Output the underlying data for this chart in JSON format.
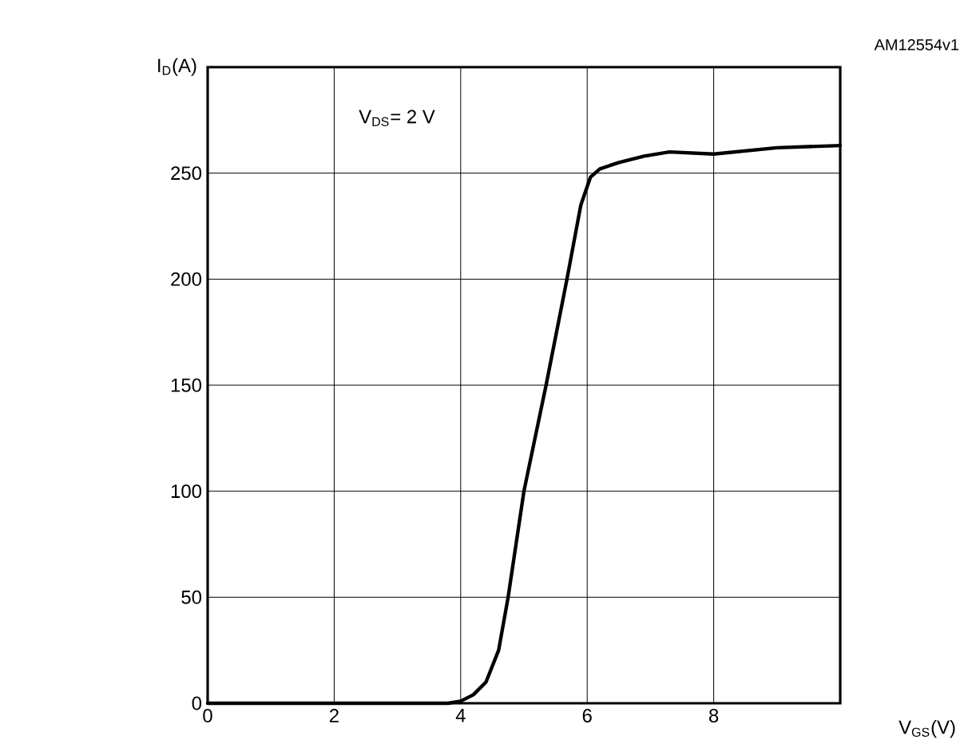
{
  "chart_data": {
    "type": "line",
    "xlabel": "V$_{GS}$(V)",
    "ylabel": "I$_{D}$(A)",
    "annotations": [
      "V$_{DS}$= 2 V",
      "AM12554v1"
    ],
    "x": [
      0,
      2,
      3,
      3.5,
      3.8,
      4,
      4.2,
      4.4,
      4.6,
      4.75,
      5.0,
      5.35,
      5.68,
      5.9,
      6.05,
      6.2,
      6.5,
      6.9,
      7.3,
      8,
      9,
      10
    ],
    "series": [
      {
        "color": "#000000",
        "values": [
          0,
          0,
          0,
          0,
          0,
          1,
          4,
          10,
          25,
          50,
          100,
          150,
          200,
          235,
          248,
          252,
          255,
          258,
          260,
          259,
          262,
          263
        ]
      }
    ],
    "xlim": [
      0,
      10
    ],
    "ylim": [
      0,
      300
    ],
    "xticks": [
      0,
      2,
      4,
      6,
      8
    ],
    "yticks": [
      0,
      50,
      100,
      150,
      200,
      250
    ],
    "grid": true,
    "marker": "none",
    "line_style": "solid"
  }
}
